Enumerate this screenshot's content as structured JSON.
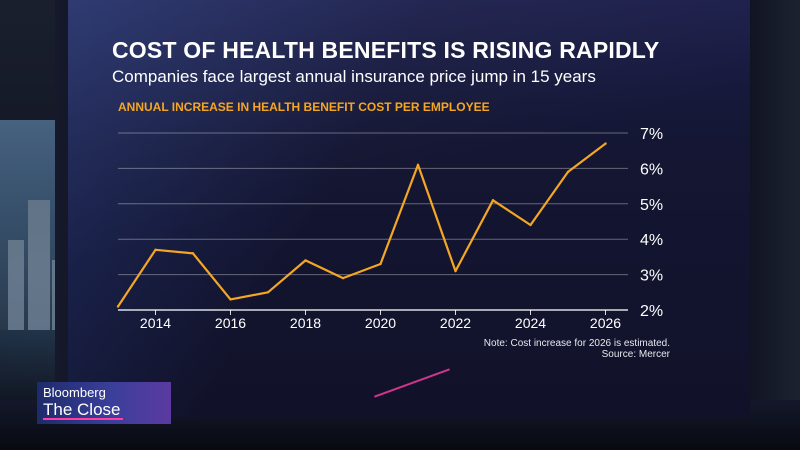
{
  "headline": "COST OF HEALTH BENEFITS IS RISING RAPIDLY",
  "subheadline": "Companies face largest annual insurance price jump in 15 years",
  "note": "Note: Cost increase for 2026 is estimated.",
  "source": "Source: Mercer",
  "show_logo": {
    "brand": "Bloomberg",
    "show": "The Close"
  },
  "colors": {
    "line": "#f5a623",
    "accent": "#ff3ea5",
    "grid": "#ffffff"
  },
  "chart_data": {
    "type": "line",
    "title": "ANNUAL INCREASE IN HEALTH BENEFIT COST PER EMPLOYEE",
    "x": [
      2013,
      2014,
      2015,
      2016,
      2017,
      2018,
      2019,
      2020,
      2021,
      2022,
      2023,
      2024,
      2025,
      2026
    ],
    "y": [
      2.1,
      3.7,
      3.6,
      2.3,
      2.5,
      3.4,
      2.9,
      3.3,
      6.1,
      3.1,
      5.1,
      4.4,
      5.9,
      6.7
    ],
    "x_tick_labels": [
      "2014",
      "2016",
      "2018",
      "2020",
      "2022",
      "2024",
      "2026"
    ],
    "y_tick_labels": [
      "2%",
      "3%",
      "4%",
      "5%",
      "6%",
      "7%"
    ],
    "ylim": [
      2,
      7
    ],
    "y_axis_position": "right",
    "grid": true,
    "legend": false
  }
}
